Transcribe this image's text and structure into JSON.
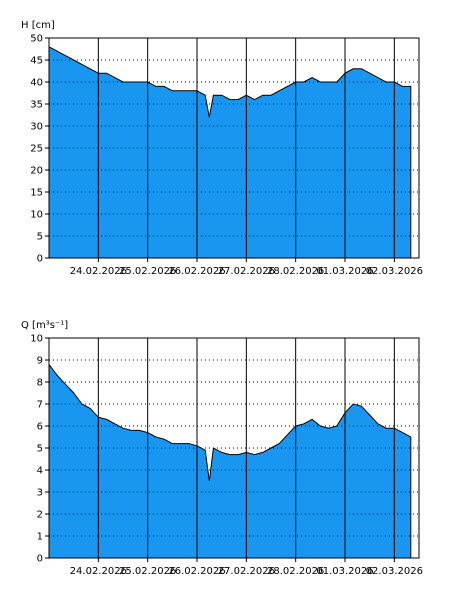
{
  "chart_data": [
    {
      "type": "area",
      "ylabel": "H [cm]",
      "ylim": [
        0,
        50
      ],
      "y_ticks": [
        0,
        5,
        10,
        15,
        20,
        25,
        30,
        35,
        40,
        45,
        50
      ],
      "x_ticks": [
        "24.02.2026",
        "25.02.2026",
        "26.02.2026",
        "27.02.2026",
        "28.02.2026",
        "01.03.2026",
        "02.03.2026"
      ],
      "x_range": [
        "23.02.2026 00:00",
        "02.03.2026 12:00"
      ],
      "grid": true,
      "fill_color": "#1996f0",
      "series": [
        {
          "x": [
            "23.02.2026 00:00",
            "23.02.2026 04:00",
            "23.02.2026 08:00",
            "23.02.2026 12:00",
            "23.02.2026 16:00",
            "23.02.2026 20:00",
            "24.02.2026 00:00",
            "24.02.2026 04:00",
            "24.02.2026 08:00",
            "24.02.2026 12:00",
            "24.02.2026 16:00",
            "24.02.2026 20:00",
            "25.02.2026 00:00",
            "25.02.2026 04:00",
            "25.02.2026 08:00",
            "25.02.2026 12:00",
            "25.02.2026 16:00",
            "25.02.2026 20:00",
            "26.02.2026 00:00",
            "26.02.2026 04:00",
            "26.02.2026 06:00",
            "26.02.2026 08:00",
            "26.02.2026 12:00",
            "26.02.2026 16:00",
            "26.02.2026 20:00",
            "27.02.2026 00:00",
            "27.02.2026 04:00",
            "27.02.2026 08:00",
            "27.02.2026 12:00",
            "27.02.2026 16:00",
            "27.02.2026 20:00",
            "28.02.2026 00:00",
            "28.02.2026 04:00",
            "28.02.2026 08:00",
            "28.02.2026 12:00",
            "28.02.2026 16:00",
            "28.02.2026 20:00",
            "01.03.2026 00:00",
            "01.03.2026 04:00",
            "01.03.2026 08:00",
            "01.03.2026 12:00",
            "01.03.2026 16:00",
            "01.03.2026 20:00",
            "02.03.2026 00:00",
            "02.03.2026 04:00",
            "02.03.2026 08:00"
          ],
          "values": [
            48,
            47,
            46,
            45,
            44,
            43,
            42,
            42,
            41,
            40,
            40,
            40,
            40,
            39,
            39,
            38,
            38,
            38,
            38,
            37,
            32,
            37,
            37,
            36,
            36,
            37,
            36,
            37,
            37,
            38,
            39,
            40,
            40,
            41,
            40,
            40,
            40,
            42,
            43,
            43,
            42,
            41,
            40,
            40,
            39,
            39
          ]
        }
      ]
    },
    {
      "type": "area",
      "ylabel": "Q [m³s⁻¹]",
      "ylim": [
        0,
        10
      ],
      "y_ticks": [
        0,
        1,
        2,
        3,
        4,
        5,
        6,
        7,
        8,
        9,
        10
      ],
      "x_ticks": [
        "24.02.2026",
        "25.02.2026",
        "26.02.2026",
        "27.02.2026",
        "28.02.2026",
        "01.03.2026",
        "02.03.2026"
      ],
      "x_range": [
        "23.02.2026 00:00",
        "02.03.2026 12:00"
      ],
      "grid": true,
      "fill_color": "#1996f0",
      "series": [
        {
          "x": [
            "23.02.2026 00:00",
            "23.02.2026 04:00",
            "23.02.2026 08:00",
            "23.02.2026 12:00",
            "23.02.2026 16:00",
            "23.02.2026 20:00",
            "24.02.2026 00:00",
            "24.02.2026 04:00",
            "24.02.2026 08:00",
            "24.02.2026 12:00",
            "24.02.2026 16:00",
            "24.02.2026 20:00",
            "25.02.2026 00:00",
            "25.02.2026 04:00",
            "25.02.2026 08:00",
            "25.02.2026 12:00",
            "25.02.2026 16:00",
            "25.02.2026 20:00",
            "26.02.2026 00:00",
            "26.02.2026 04:00",
            "26.02.2026 06:00",
            "26.02.2026 08:00",
            "26.02.2026 12:00",
            "26.02.2026 16:00",
            "26.02.2026 20:00",
            "27.02.2026 00:00",
            "27.02.2026 04:00",
            "27.02.2026 08:00",
            "27.02.2026 12:00",
            "27.02.2026 16:00",
            "27.02.2026 20:00",
            "28.02.2026 00:00",
            "28.02.2026 04:00",
            "28.02.2026 08:00",
            "28.02.2026 12:00",
            "28.02.2026 16:00",
            "28.02.2026 20:00",
            "01.03.2026 00:00",
            "01.03.2026 04:00",
            "01.03.2026 08:00",
            "01.03.2026 12:00",
            "01.03.2026 16:00",
            "01.03.2026 20:00",
            "02.03.2026 00:00",
            "02.03.2026 04:00",
            "02.03.2026 08:00"
          ],
          "values": [
            8.8,
            8.3,
            7.9,
            7.5,
            7.0,
            6.8,
            6.4,
            6.3,
            6.1,
            5.9,
            5.8,
            5.8,
            5.7,
            5.5,
            5.4,
            5.2,
            5.2,
            5.2,
            5.1,
            4.9,
            3.5,
            5.0,
            4.8,
            4.7,
            4.7,
            4.8,
            4.7,
            4.8,
            5.0,
            5.2,
            5.6,
            6.0,
            6.1,
            6.3,
            6.0,
            5.9,
            6.0,
            6.6,
            7.0,
            6.9,
            6.5,
            6.1,
            5.9,
            5.9,
            5.7,
            5.5
          ]
        }
      ]
    }
  ]
}
